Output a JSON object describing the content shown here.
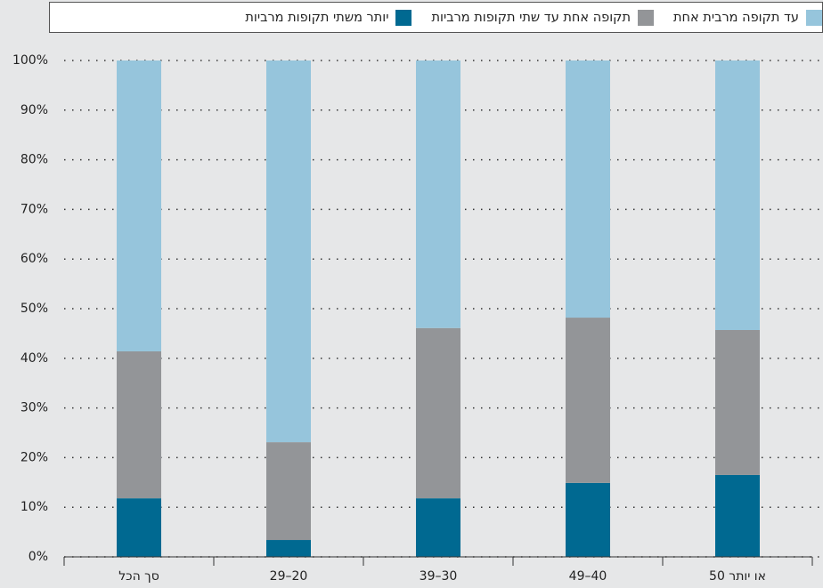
{
  "chart_data": {
    "type": "stacked_bar",
    "categories": [
      "סך הכל",
      "29–20",
      "39–30",
      "49–40",
      "50 או יותר"
    ],
    "series": [
      {
        "name": "יותר משתי תקופות מרביות",
        "color": "#006991",
        "values": [
          11.8,
          3.4,
          11.8,
          14.9,
          16.5
        ]
      },
      {
        "name": "תקופה אחת עד שתי תקופות מרביות",
        "color": "#939598",
        "values": [
          29.6,
          19.7,
          34.3,
          33.3,
          29.2
        ]
      },
      {
        "name": "עד תקופה מרבית אחת",
        "color": "#96c5dc",
        "values": [
          58.6,
          76.9,
          53.9,
          51.8,
          54.3
        ]
      }
    ],
    "ylim": [
      0,
      100
    ],
    "yticks": [
      {
        "value": 0,
        "label": "0%"
      },
      {
        "value": 10,
        "label": "10%"
      },
      {
        "value": 20,
        "label": "20%"
      },
      {
        "value": 30,
        "label": "30%"
      },
      {
        "value": 40,
        "label": "40%"
      },
      {
        "value": 50,
        "label": "50%"
      },
      {
        "value": 60,
        "label": "60%"
      },
      {
        "value": 70,
        "label": "70%"
      },
      {
        "value": 80,
        "label": "80%"
      },
      {
        "value": 90,
        "label": "90%"
      },
      {
        "value": 100,
        "label": "100%"
      }
    ],
    "grid": true
  }
}
